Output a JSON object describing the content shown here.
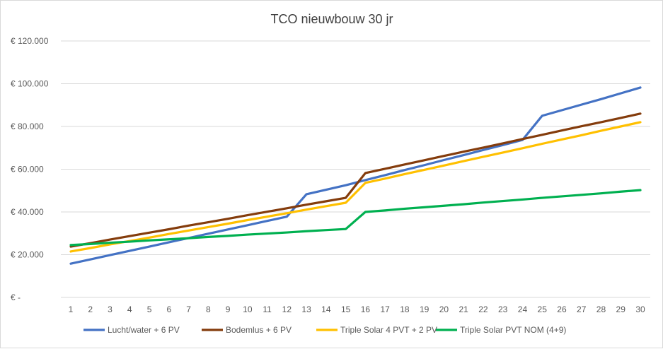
{
  "chart_data": {
    "type": "line",
    "title": "TCO nieuwbouw 30 jr",
    "xlabel": "",
    "ylabel": "",
    "x": [
      1,
      2,
      3,
      4,
      5,
      6,
      7,
      8,
      9,
      10,
      11,
      12,
      13,
      14,
      15,
      16,
      17,
      18,
      19,
      20,
      21,
      22,
      23,
      24,
      25,
      26,
      27,
      28,
      29,
      30
    ],
    "ylim": [
      0,
      120000
    ],
    "yticks": [
      0,
      20000,
      40000,
      60000,
      80000,
      100000,
      120000
    ],
    "ytick_labels": [
      "€ -",
      "€ 20.000",
      "€ 40.000",
      "€ 60.000",
      "€ 80.000",
      "€ 100.000",
      "€ 120.000"
    ],
    "grid": true,
    "legend_position": "bottom",
    "series": [
      {
        "name": "Lucht/water + 6 PV",
        "color": "#4472C4",
        "values": [
          15800,
          17800,
          19800,
          21800,
          23800,
          25800,
          27800,
          29800,
          31800,
          33800,
          35800,
          37800,
          48300,
          50400,
          52500,
          54900,
          57200,
          59600,
          61900,
          64300,
          66600,
          69000,
          71300,
          73700,
          85000,
          87600,
          90200,
          92800,
          95500,
          98200
        ]
      },
      {
        "name": "Bodemlus + 6 PV",
        "color": "#843C0C",
        "values": [
          23800,
          25400,
          27100,
          28700,
          30300,
          31900,
          33600,
          35200,
          36800,
          38500,
          40100,
          41700,
          43400,
          45000,
          46600,
          58200,
          60200,
          62200,
          64200,
          66200,
          68200,
          70100,
          72100,
          74100,
          76100,
          78100,
          80100,
          82000,
          84000,
          86000
        ]
      },
      {
        "name": "Triple Solar 4 PVT + 2 PV",
        "color": "#FFC000",
        "values": [
          21500,
          23100,
          24800,
          26400,
          28000,
          29700,
          31300,
          32900,
          34500,
          36200,
          37800,
          39400,
          41100,
          42700,
          44300,
          53600,
          55600,
          57700,
          59700,
          61700,
          63800,
          65800,
          67800,
          69800,
          71900,
          73900,
          75900,
          78000,
          80000,
          82000
        ]
      },
      {
        "name": "Triple Solar PVT NOM (4+9)",
        "color": "#00B050",
        "values": [
          24500,
          25000,
          25600,
          26100,
          26700,
          27200,
          27700,
          28300,
          28800,
          29400,
          29900,
          30400,
          31000,
          31500,
          32000,
          40000,
          40700,
          41500,
          42200,
          42900,
          43600,
          44400,
          45100,
          45800,
          46600,
          47300,
          48000,
          48700,
          49500,
          50200
        ]
      }
    ]
  }
}
